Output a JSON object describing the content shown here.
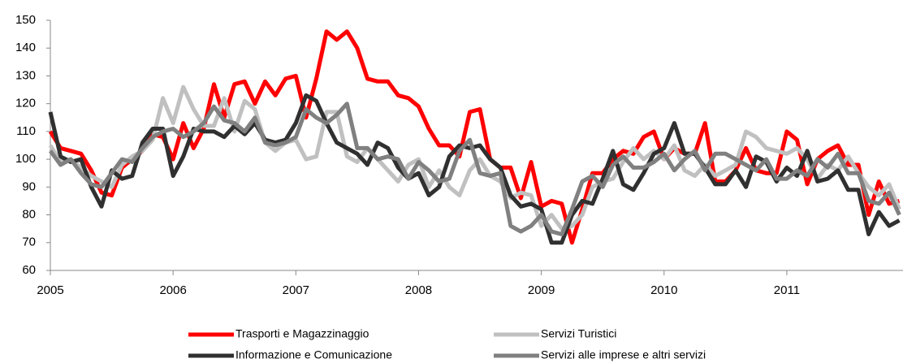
{
  "chart_data": {
    "type": "line",
    "x": [
      2005,
      2005.0833,
      2005.1667,
      2005.25,
      2005.3333,
      2005.4167,
      2005.5,
      2005.5833,
      2005.6667,
      2005.75,
      2005.8333,
      2005.9167,
      2006,
      2006.0833,
      2006.1667,
      2006.25,
      2006.3333,
      2006.4167,
      2006.5,
      2006.5833,
      2006.6667,
      2006.75,
      2006.8333,
      2006.9167,
      2007,
      2007.0833,
      2007.1667,
      2007.25,
      2007.3333,
      2007.4167,
      2007.5,
      2007.5833,
      2007.6667,
      2007.75,
      2007.8333,
      2007.9167,
      2008,
      2008.0833,
      2008.1667,
      2008.25,
      2008.3333,
      2008.4167,
      2008.5,
      2008.5833,
      2008.6667,
      2008.75,
      2008.8333,
      2008.9167,
      2009,
      2009.0833,
      2009.1667,
      2009.25,
      2009.3333,
      2009.4167,
      2009.5,
      2009.5833,
      2009.6667,
      2009.75,
      2009.8333,
      2009.9167,
      2010,
      2010.0833,
      2010.1667,
      2010.25,
      2010.3333,
      2010.4167,
      2010.5,
      2010.5833,
      2010.6667,
      2010.75,
      2010.8333,
      2010.9167,
      2011,
      2011.0833,
      2011.1667,
      2011.25,
      2011.3333,
      2011.4167,
      2011.5,
      2011.5833,
      2011.6667,
      2011.75,
      2011.8333,
      2011.9167
    ],
    "series": [
      {
        "name": "Trasporti e Magazzinaggio",
        "color": "#ff0000",
        "values": [
          110,
          104,
          103,
          102,
          96,
          88,
          87,
          97,
          100,
          103,
          109,
          108,
          100,
          113,
          104,
          111,
          127,
          115,
          127,
          128,
          120,
          128,
          123,
          129,
          130,
          115,
          129,
          146,
          143,
          146,
          140,
          129,
          128,
          128,
          123,
          122,
          119,
          111,
          105,
          105,
          101,
          117,
          118,
          100,
          97,
          97,
          86,
          99,
          83,
          85,
          84,
          70,
          82,
          95,
          95,
          100,
          103,
          102,
          108,
          110,
          100,
          104,
          102,
          102,
          113,
          92,
          92,
          96,
          104,
          96,
          95,
          95,
          110,
          107,
          91,
          100,
          103,
          105,
          98,
          98,
          80,
          92,
          84,
          85
        ]
      },
      {
        "name": "Servizi Turistici",
        "color": "#c0c0c0",
        "values": [
          105,
          99,
          100,
          97,
          94,
          92,
          90,
          98,
          101,
          103,
          107,
          122,
          113,
          126,
          118,
          112,
          112,
          122,
          110,
          121,
          118,
          106,
          103,
          106,
          107,
          100,
          101,
          117,
          117,
          101,
          99,
          104,
          100,
          96,
          92,
          98,
          100,
          90,
          96,
          90,
          87,
          96,
          100,
          94,
          92,
          86,
          88,
          87,
          76,
          80,
          75,
          76,
          80,
          90,
          92,
          93,
          99,
          104,
          100,
          103,
          100,
          105,
          96,
          94,
          98,
          94,
          96,
          98,
          110,
          108,
          104,
          103,
          102,
          104,
          100,
          93,
          98,
          96,
          101,
          95,
          90,
          87,
          91,
          82
        ]
      },
      {
        "name": "Informazione e Comunicazione",
        "color": "#303030",
        "values": [
          117,
          101,
          99,
          100,
          90,
          83,
          96,
          93,
          94,
          106,
          111,
          111,
          94,
          101,
          111,
          110,
          110,
          108,
          112,
          109,
          113,
          107,
          106,
          107,
          113,
          123,
          121,
          113,
          106,
          104,
          102,
          98,
          106,
          104,
          97,
          93,
          95,
          87,
          90,
          101,
          105,
          104,
          105,
          100,
          97,
          87,
          83,
          84,
          82,
          70,
          70,
          80,
          85,
          84,
          93,
          103,
          91,
          89,
          95,
          102,
          104,
          113,
          102,
          102,
          97,
          91,
          91,
          96,
          90,
          101,
          99,
          92,
          97,
          94,
          103,
          92,
          93,
          96,
          89,
          89,
          73,
          81,
          76,
          78
        ]
      },
      {
        "name": "Servizi alle imprese e altri servizi",
        "color": "#808080",
        "values": [
          103,
          98,
          100,
          95,
          91,
          90,
          95,
          100,
          99,
          104,
          108,
          110,
          111,
          108,
          110,
          113,
          119,
          114,
          113,
          110,
          115,
          106,
          105,
          106,
          108,
          118,
          115,
          113,
          116,
          120,
          104,
          104,
          100,
          101,
          100,
          93,
          99,
          96,
          92,
          93,
          103,
          107,
          95,
          94,
          95,
          76,
          74,
          76,
          80,
          74,
          73,
          82,
          92,
          94,
          90,
          98,
          101,
          97,
          97,
          99,
          102,
          96,
          100,
          103,
          96,
          102,
          102,
          100,
          98,
          96,
          100,
          93,
          93,
          96,
          94,
          100,
          97,
          102,
          95,
          95,
          85,
          84,
          88,
          80
        ]
      }
    ],
    "xlim": [
      2005,
      2011.92
    ],
    "xticks": [
      2005,
      2006,
      2007,
      2008,
      2009,
      2010,
      2011
    ],
    "ylim": [
      60,
      150
    ],
    "yticks": [
      60,
      70,
      80,
      90,
      100,
      110,
      120,
      130,
      140,
      150
    ],
    "grid": false,
    "legend": "bottom"
  }
}
